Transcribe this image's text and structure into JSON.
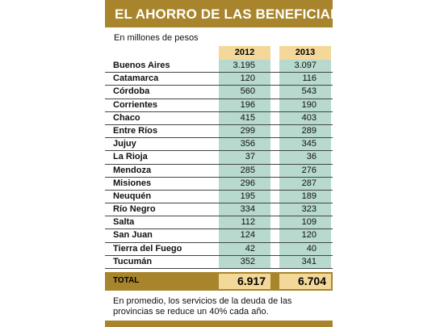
{
  "title": "EL AHORRO DE LAS BENEFICIADAS",
  "subtitle": "En millones de pesos",
  "columns": [
    "2012",
    "2013"
  ],
  "rows": [
    {
      "name": "Buenos Aires",
      "y2012": "3.195",
      "y2013": "3.097"
    },
    {
      "name": "Catamarca",
      "y2012": "120",
      "y2013": "116"
    },
    {
      "name": "Córdoba",
      "y2012": "560",
      "y2013": "543"
    },
    {
      "name": "Corrientes",
      "y2012": "196",
      "y2013": "190"
    },
    {
      "name": "Chaco",
      "y2012": "415",
      "y2013": "403"
    },
    {
      "name": "Entre Ríos",
      "y2012": "299",
      "y2013": "289"
    },
    {
      "name": "Jujuy",
      "y2012": "356",
      "y2013": "345"
    },
    {
      "name": "La Rioja",
      "y2012": "37",
      "y2013": "36"
    },
    {
      "name": "Mendoza",
      "y2012": "285",
      "y2013": "276"
    },
    {
      "name": "Misiones",
      "y2012": "296",
      "y2013": "287"
    },
    {
      "name": "Neuquén",
      "y2012": "195",
      "y2013": "189"
    },
    {
      "name": "Río Negro",
      "y2012": "334",
      "y2013": "323"
    },
    {
      "name": "Salta",
      "y2012": "112",
      "y2013": "109"
    },
    {
      "name": "San Juan",
      "y2012": "124",
      "y2013": "120"
    },
    {
      "name": "Tierra del Fuego",
      "y2012": "42",
      "y2013": "40"
    },
    {
      "name": "Tucumán",
      "y2012": "352",
      "y2013": "341"
    }
  ],
  "total": {
    "label": "TOTAL",
    "y2012": "6.917",
    "y2013": "6.704"
  },
  "note": "En promedio, los servicios de la deuda de las provincias se reduce un 40% cada año.",
  "colors": {
    "gold": "#a8852c",
    "header_fill": "#f4d89a",
    "column_fill": "#b7d9ce"
  }
}
